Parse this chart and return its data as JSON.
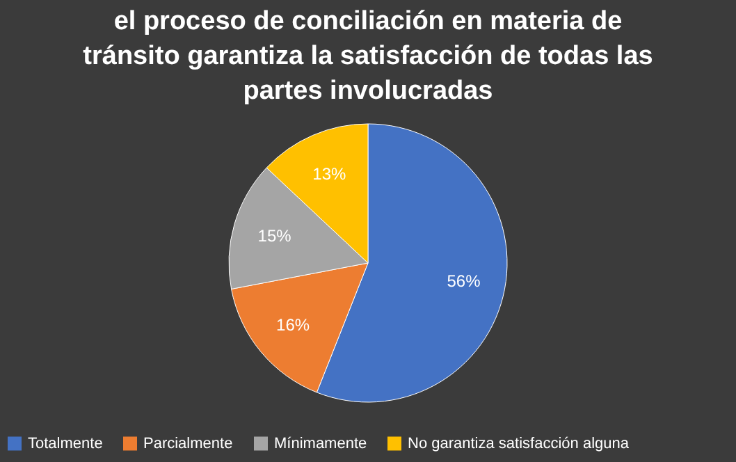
{
  "chart_data": {
    "type": "pie",
    "title": "el proceso de conciliación en materia de tránsito garantiza la satisfacción de todas las partes involucradas",
    "categories": [
      "Totalmente",
      "Parcialmente",
      "Mínimamente",
      "No garantiza satisfacción alguna"
    ],
    "values": [
      56,
      16,
      15,
      13
    ],
    "colors": [
      "#4472c4",
      "#ed7d31",
      "#a5a5a5",
      "#ffc000"
    ],
    "value_labels": [
      "56%",
      "16%",
      "15%",
      "13%"
    ],
    "legend": "bottom"
  }
}
